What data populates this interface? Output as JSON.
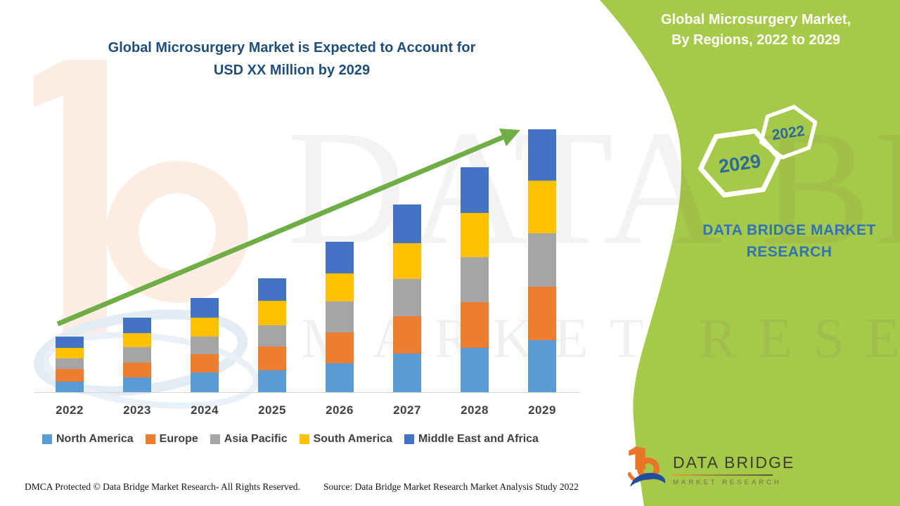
{
  "header": {
    "chart_title_line1": "Global Microsurgery Market is Expected to Account for",
    "chart_title_line2": "USD XX Million by 2029"
  },
  "side_panel": {
    "heading_line1": "Global Microsurgery Market,",
    "heading_line2": "By Regions, 2022 to 2029",
    "hexagon_top_label": "2022",
    "hexagon_bottom_label": "2029",
    "brand_line1": "DATA BRIDGE MARKET",
    "brand_line2": "RESEARCH",
    "panel_color": "#a6c94a"
  },
  "watermark": {
    "line1": "DATA BRIDGE",
    "line2": "MARKET RESEARCH"
  },
  "chart_data": {
    "type": "bar",
    "stacked": true,
    "title": "Global Microsurgery Market is Expected to Account for USD XX Million by 2029",
    "categories": [
      "2022",
      "2023",
      "2024",
      "2025",
      "2026",
      "2027",
      "2028",
      "2029"
    ],
    "series": [
      {
        "name": "North America",
        "color": "#5B9BD5",
        "values": [
          15,
          21,
          28,
          31,
          41,
          55,
          63,
          74
        ]
      },
      {
        "name": "Europe",
        "color": "#ED7D31",
        "values": [
          18,
          21,
          26,
          34,
          44,
          53,
          65,
          76
        ]
      },
      {
        "name": "Asia Pacific",
        "color": "#A5A5A5",
        "values": [
          15,
          22,
          25,
          30,
          44,
          53,
          64,
          76
        ]
      },
      {
        "name": "South America",
        "color": "#FFC000",
        "values": [
          15,
          20,
          27,
          35,
          40,
          51,
          63,
          75
        ]
      },
      {
        "name": "Middle East and Africa",
        "color": "#4472C4",
        "values": [
          16,
          22,
          28,
          32,
          45,
          55,
          65,
          73
        ]
      }
    ],
    "totals": [
      79,
      106,
      134,
      162,
      214,
      267,
      320,
      374
    ],
    "xlabel": "",
    "ylabel": "",
    "ylim": [
      0,
      400
    ],
    "y_axis_shown": false,
    "units": "relative units (actual values masked as USD XX Million)",
    "legend_position": "bottom",
    "trend_arrow": true
  },
  "footer": {
    "dmca": "DMCA Protected © Data Bridge Market Research- All Rights Reserved.",
    "source": "Source: Data Bridge Market Research Market Analysis Study 2022"
  },
  "logo": {
    "name_line": "DATA BRIDGE",
    "sub_line": "MARKET RESEARCH"
  },
  "colors": {
    "title_blue": "#1f4e79",
    "brand_blue": "#2e74b5",
    "arrow_green": "#6fad45",
    "panel_green": "#a6c94a",
    "hex_text_blue": "#2b6a99",
    "axis_gray": "#d6d6d6",
    "legend_text": "#404040"
  }
}
